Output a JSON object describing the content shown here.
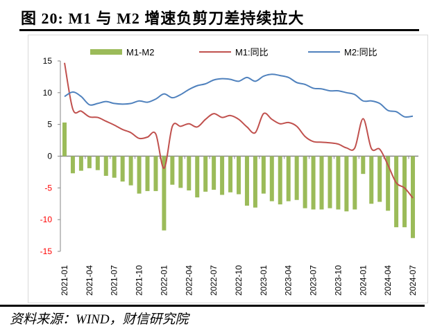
{
  "title": "图 20:  M1 与 M2 增速负剪刀差持续拉大",
  "source": "资料来源：WIND，财信研究院",
  "chart_data": {
    "type": "bar+line",
    "title": "图 20:  M1 与 M2 增速负剪刀差持续拉大",
    "xlabel": "",
    "ylabel": "",
    "ylim": [
      -15,
      15
    ],
    "yticks": [
      15,
      10,
      5,
      0,
      -5,
      -10,
      -15
    ],
    "ytick_labels": [
      "15",
      "10",
      "5",
      "0",
      "-5",
      "-10",
      "-15"
    ],
    "negative_tick_color": "#ff0000",
    "grid": false,
    "legend_position": "top",
    "x": [
      "2021-01",
      "2021-02",
      "2021-03",
      "2021-04",
      "2021-05",
      "2021-06",
      "2021-07",
      "2021-08",
      "2021-09",
      "2021-10",
      "2021-11",
      "2021-12",
      "2022-01",
      "2022-02",
      "2022-03",
      "2022-04",
      "2022-05",
      "2022-06",
      "2022-07",
      "2022-08",
      "2022-09",
      "2022-10",
      "2022-11",
      "2022-12",
      "2023-01",
      "2023-02",
      "2023-03",
      "2023-04",
      "2023-05",
      "2023-06",
      "2023-07",
      "2023-08",
      "2023-09",
      "2023-10",
      "2023-11",
      "2023-12",
      "2024-01",
      "2024-02",
      "2024-03",
      "2024-04",
      "2024-05",
      "2024-06",
      "2024-07"
    ],
    "xtick_labels": [
      "2021-01",
      "2021-04",
      "2021-07",
      "2021-10",
      "2022-01",
      "2022-04",
      "2022-07",
      "2022-10",
      "2023-01",
      "2023-04",
      "2023-07",
      "2023-10",
      "2024-01",
      "2024-04",
      "2024-07"
    ],
    "series": [
      {
        "name": "M1-M2",
        "type": "bar",
        "color": "#9bbb59",
        "values": [
          5.3,
          -2.7,
          -2.3,
          -1.9,
          -2.2,
          -3.1,
          -3.4,
          -4.0,
          -4.6,
          -5.9,
          -5.5,
          -5.5,
          -11.7,
          -4.5,
          -5.0,
          -5.4,
          -6.5,
          -5.6,
          -5.3,
          -6.1,
          -5.7,
          -6.0,
          -7.8,
          -8.1,
          -5.9,
          -7.1,
          -7.6,
          -7.1,
          -6.9,
          -8.2,
          -8.4,
          -8.4,
          -8.2,
          -8.4,
          -8.7,
          -8.4,
          -2.8,
          -7.5,
          -7.2,
          -8.6,
          -11.2,
          -11.2,
          -12.9
        ]
      },
      {
        "name": "M1:同比",
        "type": "line",
        "color": "#c0504d",
        "values": [
          14.7,
          7.4,
          7.1,
          6.2,
          6.1,
          5.5,
          4.9,
          4.2,
          3.7,
          2.8,
          3.0,
          3.5,
          -1.9,
          4.7,
          4.7,
          5.1,
          4.6,
          5.8,
          6.7,
          6.1,
          6.4,
          5.8,
          4.6,
          3.7,
          6.7,
          5.8,
          5.1,
          5.3,
          4.7,
          3.1,
          2.3,
          2.2,
          2.1,
          1.9,
          1.3,
          1.3,
          5.9,
          1.2,
          1.1,
          -1.4,
          -4.2,
          -5.0,
          -6.6
        ]
      },
      {
        "name": "M2:同比",
        "type": "line",
        "color": "#4f81bd",
        "values": [
          9.4,
          10.1,
          9.4,
          8.1,
          8.3,
          8.6,
          8.3,
          8.2,
          8.3,
          8.7,
          8.5,
          9.0,
          9.8,
          9.2,
          9.7,
          10.5,
          11.1,
          11.4,
          12.0,
          12.2,
          12.1,
          11.8,
          12.4,
          11.8,
          12.6,
          12.9,
          12.7,
          12.4,
          11.6,
          11.3,
          10.7,
          10.6,
          10.3,
          10.3,
          10.0,
          9.7,
          8.7,
          8.7,
          8.3,
          7.2,
          7.0,
          6.2,
          6.3
        ]
      }
    ]
  }
}
